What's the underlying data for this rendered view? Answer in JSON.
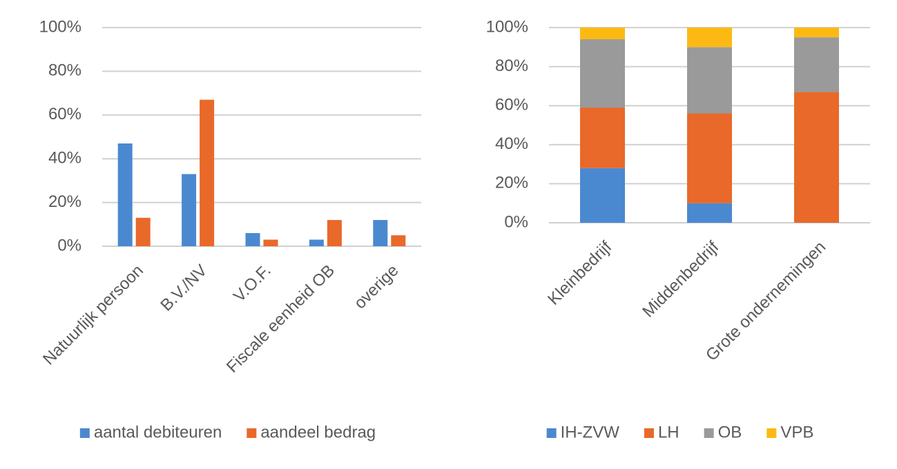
{
  "chart_data": [
    {
      "type": "bar",
      "stacked": false,
      "legend": "bottom",
      "grid": true,
      "categories": [
        "Natuurlijk persoon",
        "B.V./NV",
        "V.O.F.",
        "Fiscale eenheid OB",
        "overige"
      ],
      "series": [
        {
          "name": "aantal debiteuren",
          "color": "#4a89d0",
          "values": [
            47,
            33,
            6,
            3,
            12
          ]
        },
        {
          "name": "aandeel bedrag",
          "color": "#e8692a",
          "values": [
            13,
            67,
            3,
            12,
            5
          ]
        }
      ],
      "ylim": [
        0,
        100
      ],
      "yticks": [
        {
          "value": 0,
          "label": "0%"
        },
        {
          "value": 20,
          "label": "20%"
        },
        {
          "value": 40,
          "label": "40%"
        },
        {
          "value": 60,
          "label": "60%"
        },
        {
          "value": 80,
          "label": "80%"
        },
        {
          "value": 100,
          "label": "100%"
        }
      ]
    },
    {
      "type": "bar",
      "stacked": true,
      "legend": "bottom",
      "grid": true,
      "categories": [
        "Kleinbedrijf",
        "Middenbedrijf",
        "Grote ondernemingen"
      ],
      "series": [
        {
          "name": "IH-ZVW",
          "color": "#4a89d0",
          "values": [
            28,
            10,
            0
          ]
        },
        {
          "name": "LH",
          "color": "#e8692a",
          "values": [
            31,
            46,
            67
          ]
        },
        {
          "name": "OB",
          "color": "#9a9a9a",
          "values": [
            35,
            34,
            28
          ]
        },
        {
          "name": "VPB",
          "color": "#fdb913",
          "values": [
            6,
            10,
            5
          ]
        }
      ],
      "ylim": [
        0,
        100
      ],
      "yticks": [
        {
          "value": 0,
          "label": "0%"
        },
        {
          "value": 20,
          "label": "20%"
        },
        {
          "value": 40,
          "label": "40%"
        },
        {
          "value": 60,
          "label": "60%"
        },
        {
          "value": 80,
          "label": "80%"
        },
        {
          "value": 100,
          "label": "100%"
        }
      ]
    }
  ]
}
